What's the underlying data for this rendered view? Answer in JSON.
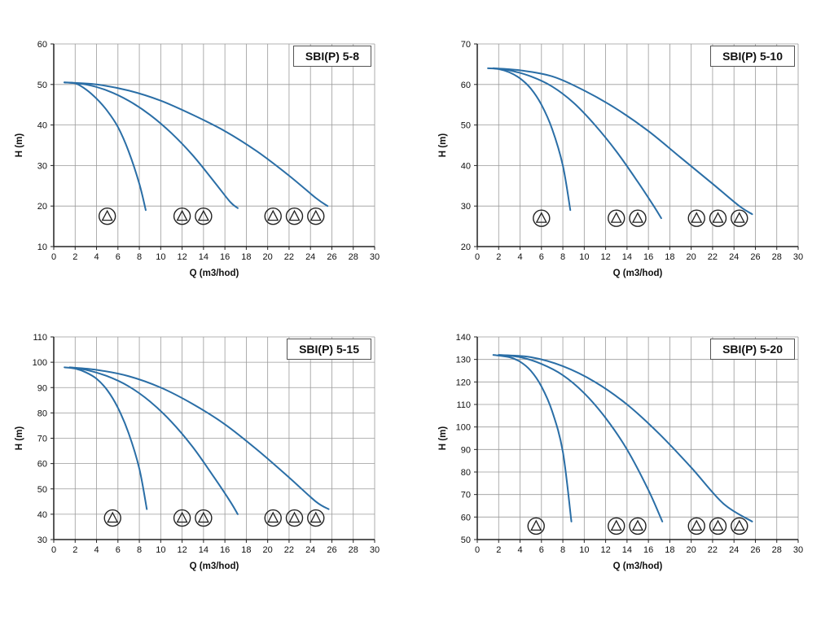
{
  "page": {
    "background_color": "#ffffff",
    "grid_color": "#9a9a9a",
    "axis_color": "#222222",
    "curve_color": "#2a6ea6",
    "icon_color": "#222222"
  },
  "chart_data": [
    {
      "type": "line",
      "title": "SBI(P) 5-8",
      "xlabel": "Q (m3/hod)",
      "ylabel": "H (m)",
      "xlim": [
        0,
        30
      ],
      "ylim": [
        10,
        60
      ],
      "xticks": [
        0,
        2,
        4,
        6,
        8,
        10,
        12,
        14,
        16,
        18,
        20,
        22,
        24,
        26,
        28,
        30
      ],
      "yticks": [
        10,
        20,
        30,
        40,
        50,
        60
      ],
      "grid": true,
      "series": [
        {
          "name": "1-pump",
          "points": [
            [
              1,
              50.5
            ],
            [
              2,
              50.3
            ],
            [
              3,
              48.8
            ],
            [
              4,
              46.5
            ],
            [
              5,
              43.5
            ],
            [
              6,
              39.5
            ],
            [
              7,
              33.5
            ],
            [
              8,
              25.5
            ],
            [
              8.6,
              19
            ]
          ]
        },
        {
          "name": "2-pumps",
          "points": [
            [
              1,
              50.5
            ],
            [
              3,
              50
            ],
            [
              5,
              48.5
            ],
            [
              7,
              46
            ],
            [
              9,
              42.5
            ],
            [
              11,
              38
            ],
            [
              13,
              32.5
            ],
            [
              15,
              26
            ],
            [
              16.5,
              21
            ],
            [
              17.2,
              19.5
            ]
          ]
        },
        {
          "name": "3-pumps",
          "points": [
            [
              1,
              50.5
            ],
            [
              4,
              50
            ],
            [
              7,
              48.5
            ],
            [
              10,
              46
            ],
            [
              13,
              42.5
            ],
            [
              16,
              38.5
            ],
            [
              19,
              33.5
            ],
            [
              22,
              27.5
            ],
            [
              24.5,
              22
            ],
            [
              25.6,
              20
            ]
          ]
        }
      ],
      "pump_icon_groups": [
        {
          "count": 1,
          "xs": [
            5
          ],
          "y": 17.5
        },
        {
          "count": 2,
          "xs": [
            12,
            14
          ],
          "y": 17.5
        },
        {
          "count": 3,
          "xs": [
            20.5,
            22.5,
            24.5
          ],
          "y": 17.5
        }
      ]
    },
    {
      "type": "line",
      "title": "SBI(P) 5-10",
      "xlabel": "Q (m3/hod)",
      "ylabel": "H (m)",
      "xlim": [
        0,
        30
      ],
      "ylim": [
        20,
        70
      ],
      "xticks": [
        0,
        2,
        4,
        6,
        8,
        10,
        12,
        14,
        16,
        18,
        20,
        22,
        24,
        26,
        28,
        30
      ],
      "yticks": [
        20,
        30,
        40,
        50,
        60,
        70
      ],
      "grid": true,
      "series": [
        {
          "name": "1-pump",
          "points": [
            [
              1,
              64
            ],
            [
              2,
              63.8
            ],
            [
              3,
              63
            ],
            [
              4,
              61.5
            ],
            [
              5,
              59
            ],
            [
              6,
              55
            ],
            [
              7,
              49
            ],
            [
              8,
              40
            ],
            [
              8.7,
              29
            ]
          ]
        },
        {
          "name": "2-pumps",
          "points": [
            [
              1.5,
              64
            ],
            [
              3,
              63.5
            ],
            [
              5,
              62
            ],
            [
              7,
              59.5
            ],
            [
              9,
              55.5
            ],
            [
              11,
              50
            ],
            [
              13,
              43.5
            ],
            [
              15,
              36
            ],
            [
              16.5,
              30
            ],
            [
              17.2,
              27
            ]
          ]
        },
        {
          "name": "3-pumps",
          "points": [
            [
              1.5,
              64
            ],
            [
              4,
              63.5
            ],
            [
              7,
              62
            ],
            [
              10,
              58.5
            ],
            [
              13,
              54
            ],
            [
              16,
              48.5
            ],
            [
              19,
              42
            ],
            [
              22,
              35.5
            ],
            [
              24.5,
              30
            ],
            [
              25.7,
              28
            ]
          ]
        }
      ],
      "pump_icon_groups": [
        {
          "count": 1,
          "xs": [
            6
          ],
          "y": 27
        },
        {
          "count": 2,
          "xs": [
            13,
            15
          ],
          "y": 27
        },
        {
          "count": 3,
          "xs": [
            20.5,
            22.5,
            24.5
          ],
          "y": 27
        }
      ]
    },
    {
      "type": "line",
      "title": "SBI(P) 5-15",
      "xlabel": "Q (m3/hod)",
      "ylabel": "H (m)",
      "xlim": [
        0,
        30
      ],
      "ylim": [
        30,
        110
      ],
      "xticks": [
        0,
        2,
        4,
        6,
        8,
        10,
        12,
        14,
        16,
        18,
        20,
        22,
        24,
        26,
        28,
        30
      ],
      "yticks": [
        30,
        40,
        50,
        60,
        70,
        80,
        90,
        100,
        110
      ],
      "grid": true,
      "series": [
        {
          "name": "1-pump",
          "points": [
            [
              1,
              98
            ],
            [
              2,
              97.5
            ],
            [
              3,
              96
            ],
            [
              4,
              93.5
            ],
            [
              5,
              89
            ],
            [
              6,
              82
            ],
            [
              7,
              72
            ],
            [
              8,
              58
            ],
            [
              8.7,
              42
            ]
          ]
        },
        {
          "name": "2-pumps",
          "points": [
            [
              1.5,
              98
            ],
            [
              3,
              97
            ],
            [
              5,
              94.5
            ],
            [
              7,
              90.5
            ],
            [
              9,
              84.5
            ],
            [
              11,
              76.5
            ],
            [
              13,
              66.5
            ],
            [
              15,
              54.5
            ],
            [
              16.5,
              45
            ],
            [
              17.2,
              40
            ]
          ]
        },
        {
          "name": "3-pumps",
          "points": [
            [
              1.5,
              98
            ],
            [
              4,
              97
            ],
            [
              7,
              94.5
            ],
            [
              10,
              90
            ],
            [
              13,
              83.5
            ],
            [
              16,
              75.5
            ],
            [
              19,
              65.5
            ],
            [
              22,
              54.5
            ],
            [
              24.5,
              45
            ],
            [
              25.7,
              42
            ]
          ]
        }
      ],
      "pump_icon_groups": [
        {
          "count": 1,
          "xs": [
            5.5
          ],
          "y": 38.5
        },
        {
          "count": 2,
          "xs": [
            12,
            14
          ],
          "y": 38.5
        },
        {
          "count": 3,
          "xs": [
            20.5,
            22.5,
            24.5
          ],
          "y": 38.5
        }
      ]
    },
    {
      "type": "line",
      "title": "SBI(P) 5-20",
      "xlabel": "Q (m3/hod)",
      "ylabel": "H (m)",
      "xlim": [
        0,
        30
      ],
      "ylim": [
        50,
        140
      ],
      "xticks": [
        0,
        2,
        4,
        6,
        8,
        10,
        12,
        14,
        16,
        18,
        20,
        22,
        24,
        26,
        28,
        30
      ],
      "yticks": [
        50,
        60,
        70,
        80,
        90,
        100,
        110,
        120,
        130,
        140
      ],
      "grid": true,
      "series": [
        {
          "name": "1-pump",
          "points": [
            [
              1.5,
              132
            ],
            [
              3,
              131
            ],
            [
              4,
              129
            ],
            [
              5,
              125
            ],
            [
              6,
              118
            ],
            [
              7,
              107
            ],
            [
              8,
              89
            ],
            [
              8.8,
              58
            ]
          ]
        },
        {
          "name": "2-pumps",
          "points": [
            [
              2,
              132
            ],
            [
              4,
              131
            ],
            [
              6,
              128
            ],
            [
              8,
              123
            ],
            [
              10,
              115
            ],
            [
              12,
              104
            ],
            [
              14,
              90
            ],
            [
              16,
              72
            ],
            [
              17.3,
              58
            ]
          ]
        },
        {
          "name": "3-pumps",
          "points": [
            [
              2,
              132
            ],
            [
              5,
              131
            ],
            [
              8,
              127
            ],
            [
              11,
              120
            ],
            [
              14,
              110
            ],
            [
              17,
              97
            ],
            [
              20,
              82
            ],
            [
              23,
              66
            ],
            [
              25.7,
              58
            ]
          ]
        }
      ],
      "pump_icon_groups": [
        {
          "count": 1,
          "xs": [
            5.5
          ],
          "y": 56
        },
        {
          "count": 2,
          "xs": [
            13,
            15
          ],
          "y": 56
        },
        {
          "count": 3,
          "xs": [
            20.5,
            22.5,
            24.5
          ],
          "y": 56
        }
      ]
    }
  ]
}
